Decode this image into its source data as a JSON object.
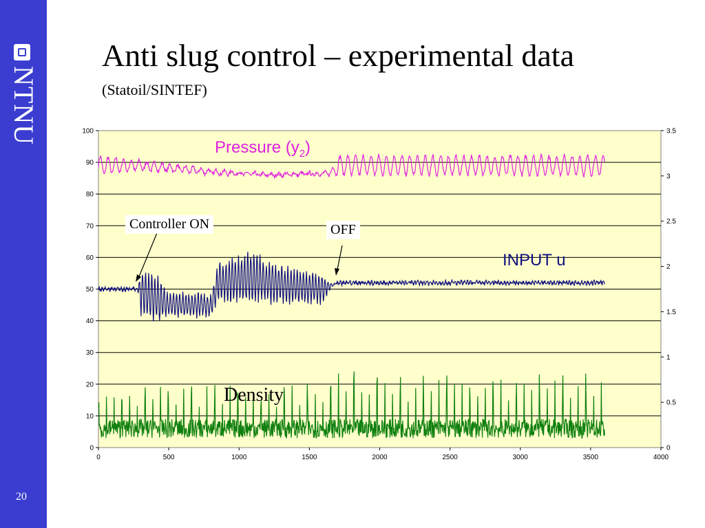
{
  "slide": {
    "title": "Anti slug control – experimental data",
    "subtitle": "(Statoil/SINTEF)",
    "number": "20",
    "logo_text": "NTNU",
    "accent_color": "#3a3dd0"
  },
  "chart_data": {
    "type": "line",
    "xlim": [
      0,
      4000
    ],
    "ylim_left": [
      0,
      100
    ],
    "ylim_right": [
      0,
      3.5
    ],
    "x_ticks": [
      "0",
      "500",
      "1000",
      "1500",
      "2000",
      "2500",
      "3000",
      "3500",
      "4000"
    ],
    "y_ticks_left": [
      "0",
      "10",
      "20",
      "30",
      "40",
      "50",
      "60",
      "70",
      "80",
      "90",
      "100"
    ],
    "y_ticks_right": [
      "0",
      "0.5",
      "1",
      "1.5",
      "2",
      "2.5",
      "3",
      "3.5"
    ],
    "grid": "horizontal",
    "background_color": "#ffffcc",
    "annotations": {
      "controller_on": "Controller ON",
      "off": "OFF"
    },
    "series": [
      {
        "name": "Pressure (y2)",
        "label_main": "Pressure (y",
        "label_sub": "2",
        "label_end": ")",
        "color": "#e020e0",
        "x": [
          0,
          300,
          800,
          1200,
          1650,
          1700,
          3600
        ],
        "y": [
          89,
          89,
          87,
          86,
          86.5,
          89,
          89
        ],
        "amp": [
          6,
          3,
          1.5,
          1,
          1,
          6,
          6
        ]
      },
      {
        "name": "INPUT u",
        "color": "#101080",
        "x": [
          0,
          280,
          300,
          420,
          500,
          800,
          850,
          1000,
          1100,
          1200,
          1400,
          1600,
          1650,
          1700,
          3600
        ],
        "y": [
          50,
          50,
          49,
          47,
          45,
          45,
          52,
          53,
          54,
          52,
          51,
          50,
          51,
          52,
          52
        ],
        "amp": [
          1,
          1,
          16,
          16,
          8,
          8,
          14,
          16,
          18,
          14,
          12,
          10,
          2,
          1,
          1
        ]
      },
      {
        "name": "Density",
        "color": "#108010",
        "x": [
          0,
          1680,
          1700,
          3600
        ],
        "y": [
          6,
          6,
          6,
          6
        ],
        "peaks": [
          20,
          20,
          24,
          24
        ]
      }
    ]
  }
}
